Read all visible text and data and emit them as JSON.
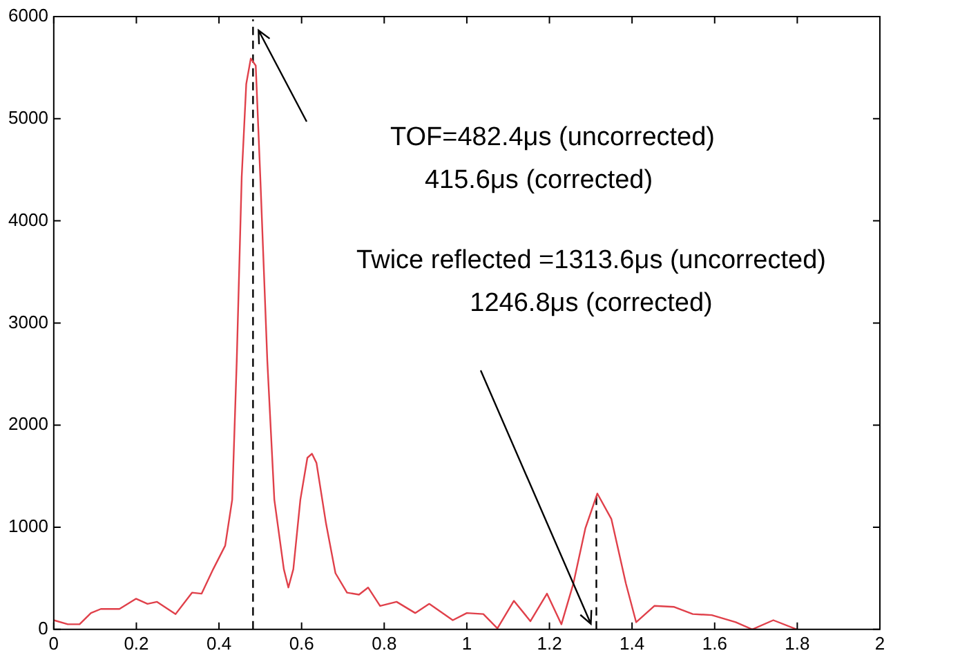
{
  "chart_data": {
    "type": "line",
    "x": [
      0,
      0.034,
      0.0625,
      0.09,
      0.114,
      0.159,
      0.199,
      0.227,
      0.25,
      0.295,
      0.335,
      0.358,
      0.386,
      0.415,
      0.432,
      0.443,
      0.455,
      0.466,
      0.477,
      0.489,
      0.5,
      0.517,
      0.534,
      0.557,
      0.568,
      0.58,
      0.597,
      0.614,
      0.625,
      0.636,
      0.659,
      0.682,
      0.71,
      0.739,
      0.761,
      0.79,
      0.83,
      0.875,
      0.909,
      0.966,
      1.0,
      1.04,
      1.074,
      1.114,
      1.154,
      1.194,
      1.229,
      1.258,
      1.287,
      1.316,
      1.35,
      1.385,
      1.41,
      1.454,
      1.502,
      1.547,
      1.593,
      1.651,
      1.691,
      1.742,
      1.799
    ],
    "series": [
      {
        "color": "#e0404a",
        "values": [
          90,
          50,
          50,
          160,
          200,
          200,
          300,
          250,
          270,
          150,
          360,
          350,
          590,
          820,
          1270,
          2630,
          4430,
          5340,
          5590,
          5520,
          4430,
          2630,
          1270,
          590,
          410,
          590,
          1270,
          1680,
          1720,
          1630,
          1040,
          550,
          360,
          340,
          410,
          230,
          270,
          160,
          250,
          90,
          160,
          150,
          10,
          280,
          80,
          350,
          50,
          450,
          990,
          1330,
          1080,
          450,
          70,
          230,
          220,
          150,
          140,
          70,
          0,
          90,
          0
        ]
      }
    ],
    "xlim": [
      0,
      2
    ],
    "xticks": [
      0,
      0.2,
      0.4,
      0.6,
      0.8,
      1,
      1.2,
      1.4,
      1.6,
      1.8,
      2
    ],
    "ylim": [
      0,
      6000
    ],
    "yticks": [
      0,
      1000,
      2000,
      3000,
      4000,
      5000,
      6000
    ],
    "grid": false,
    "legend": false,
    "marker": "none",
    "line_style": "solid",
    "ref_lines": [
      {
        "axis": "x",
        "value": 0.4824,
        "color": "#000000",
        "line_style": "dashed"
      },
      {
        "axis": "x",
        "value": 1.3136,
        "color": "#000000",
        "line_style": "dashed"
      }
    ],
    "annotations": [
      "TOF=482.4μs (uncorrected)",
      "415.6μs (corrected)",
      "Twice reflected =1313.6μs (uncorrected)",
      "1246.8μs (corrected)"
    ]
  }
}
